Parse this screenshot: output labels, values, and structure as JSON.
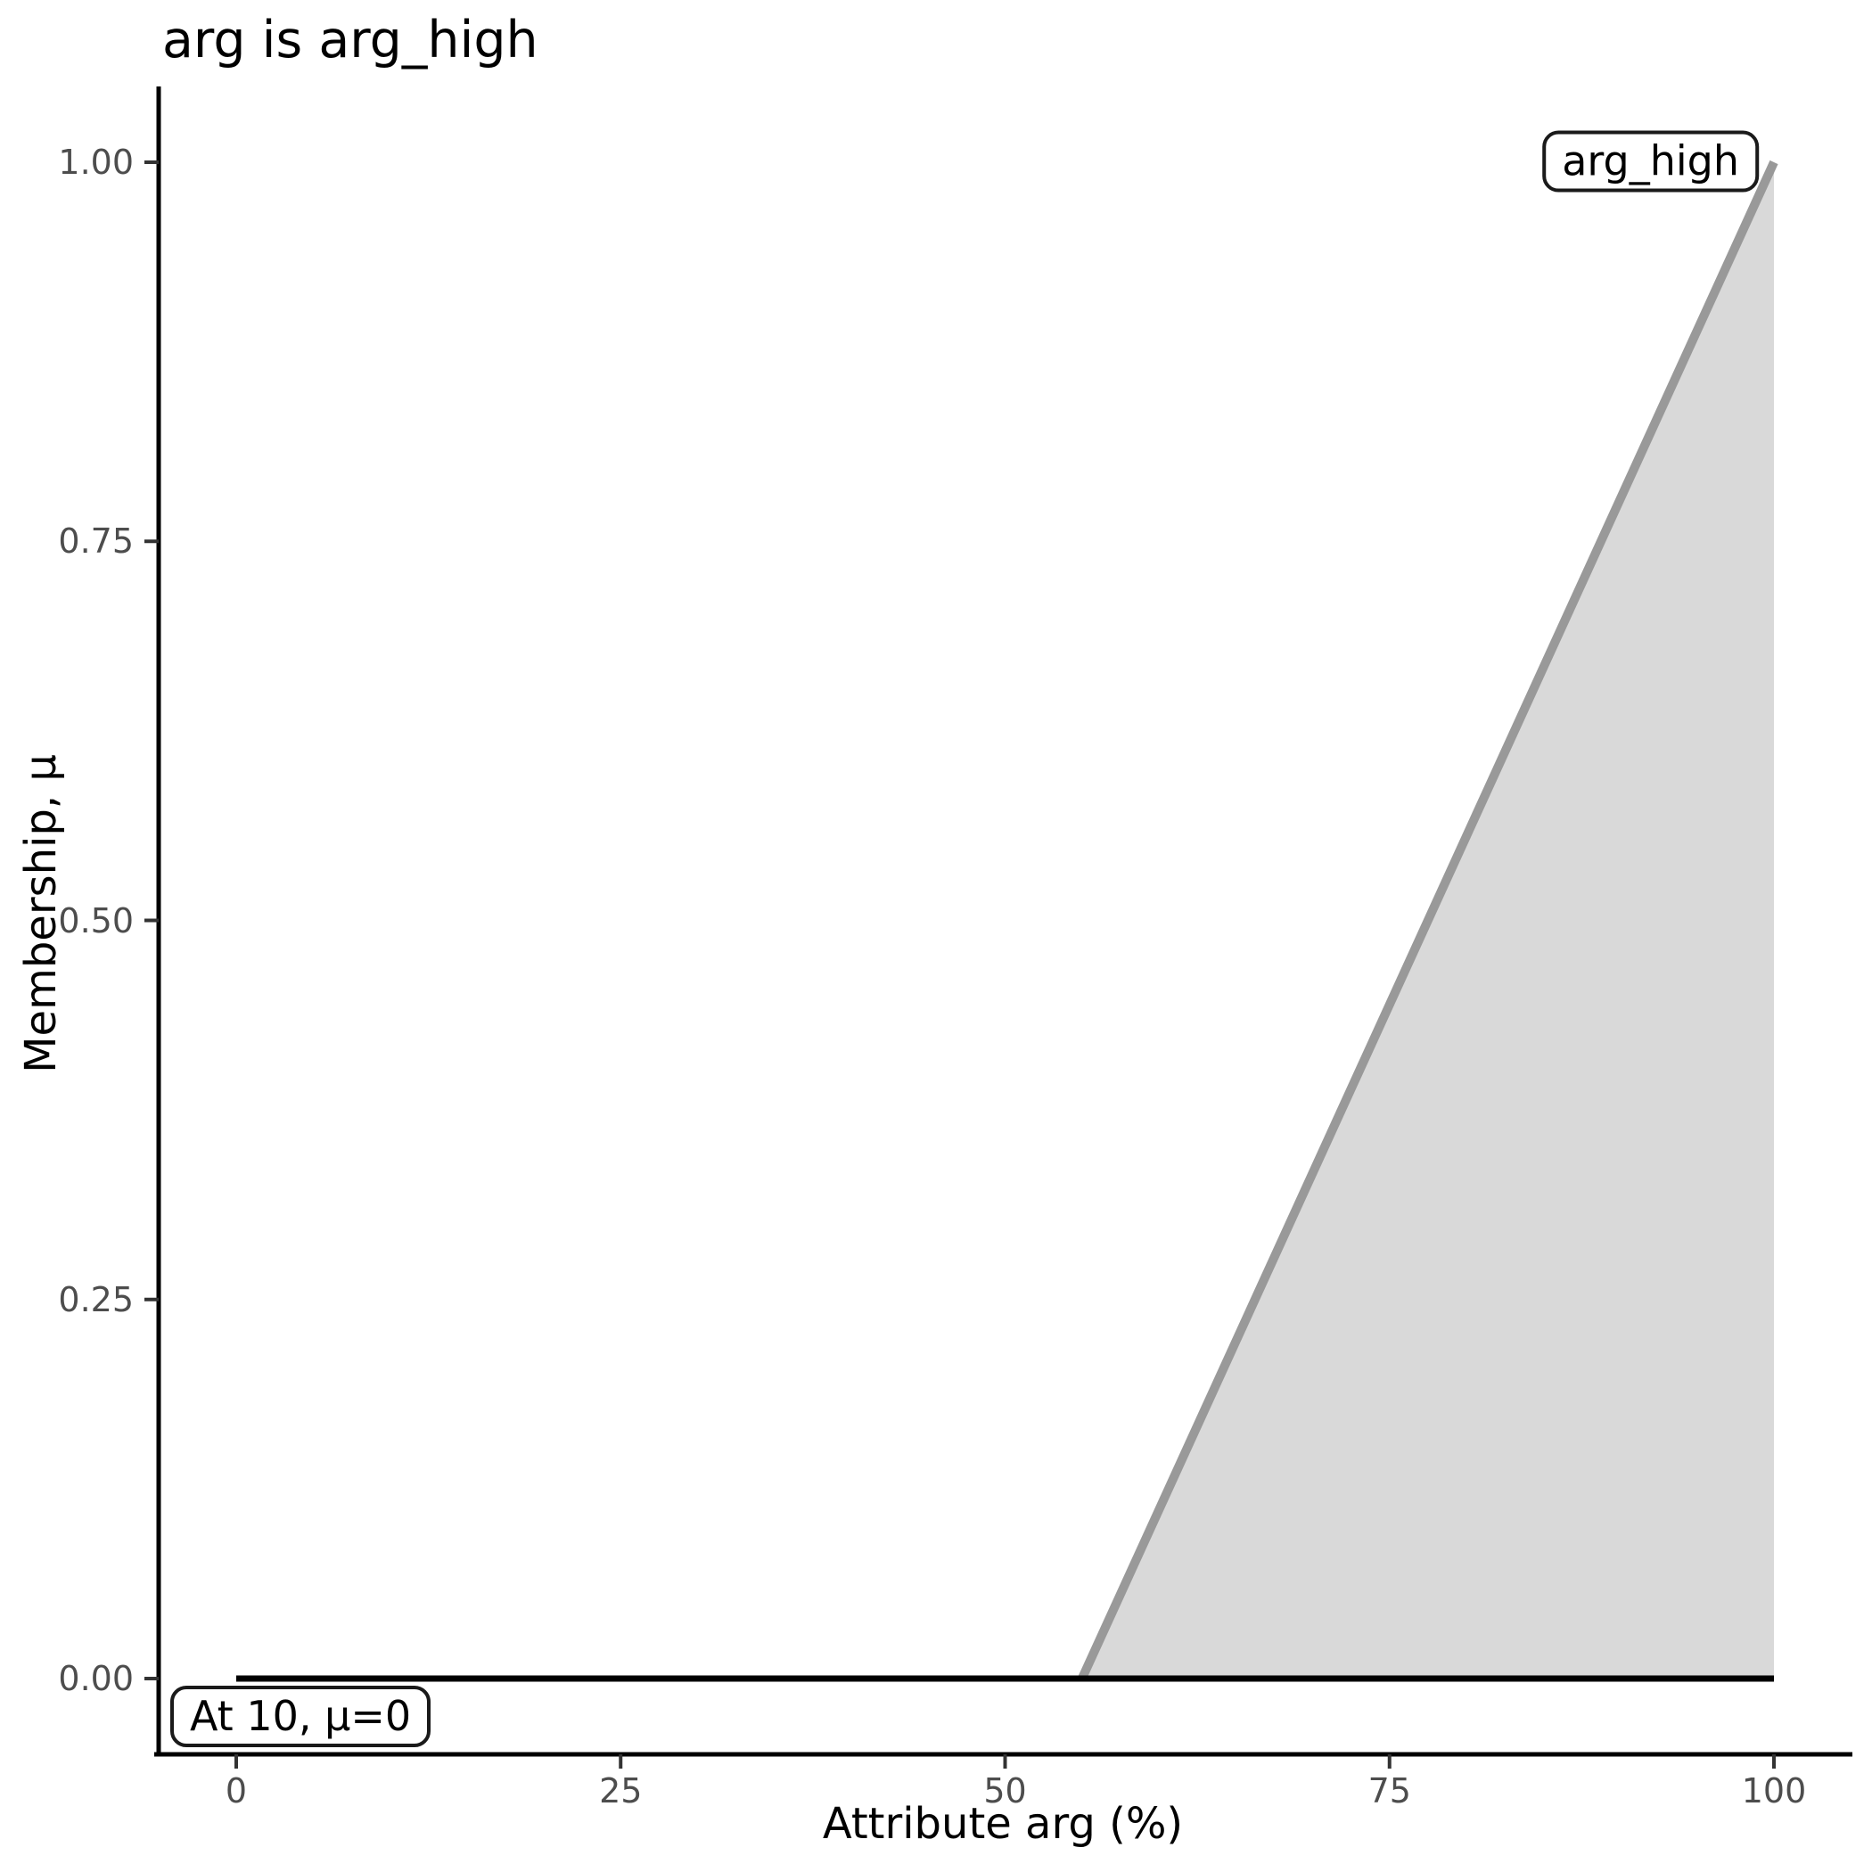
{
  "chart_data": {
    "type": "area",
    "title": "arg is arg_high",
    "xlabel": "Attribute arg (%)",
    "ylabel": "Membership, μ",
    "xlim": [
      0,
      100
    ],
    "ylim": [
      0,
      1
    ],
    "grid": false,
    "legend_position": "none",
    "x_ticks": [
      {
        "value": 0,
        "label": "0"
      },
      {
        "value": 25,
        "label": "25"
      },
      {
        "value": 50,
        "label": "50"
      },
      {
        "value": 75,
        "label": "75"
      },
      {
        "value": 100,
        "label": "100"
      }
    ],
    "y_ticks": [
      {
        "value": 0,
        "label": "0.00"
      },
      {
        "value": 0.25,
        "label": "0.25"
      },
      {
        "value": 0.5,
        "label": "0.50"
      },
      {
        "value": 0.75,
        "label": "0.75"
      },
      {
        "value": 1,
        "label": "1.00"
      }
    ],
    "series": [
      {
        "name": "arg_high-membership-ramp",
        "type": "line",
        "points": [
          [
            55,
            0
          ],
          [
            100,
            1
          ]
        ],
        "color": "#999999",
        "line_width": 10,
        "fill": true,
        "fill_color": "#d9d9d9",
        "fill_baseline": 0
      },
      {
        "name": "activation-result-mu-0",
        "type": "line",
        "points": [
          [
            0,
            0
          ],
          [
            100,
            0
          ]
        ],
        "color": "#000000",
        "line_width": 7,
        "fill": false
      }
    ],
    "annotations": [
      {
        "name": "set-label",
        "text": "arg_high",
        "position": "top-right"
      },
      {
        "name": "eval-label",
        "text": "At 10, μ=0",
        "position": "bottom-left"
      }
    ],
    "colors": {
      "axis_line": "#000000",
      "tick_mark": "#333333",
      "tick_label": "#4d4d4d",
      "title": "#000000",
      "annotation_border": "#1a1a1a",
      "annotation_background": "#ffffff",
      "background": "#ffffff"
    }
  }
}
